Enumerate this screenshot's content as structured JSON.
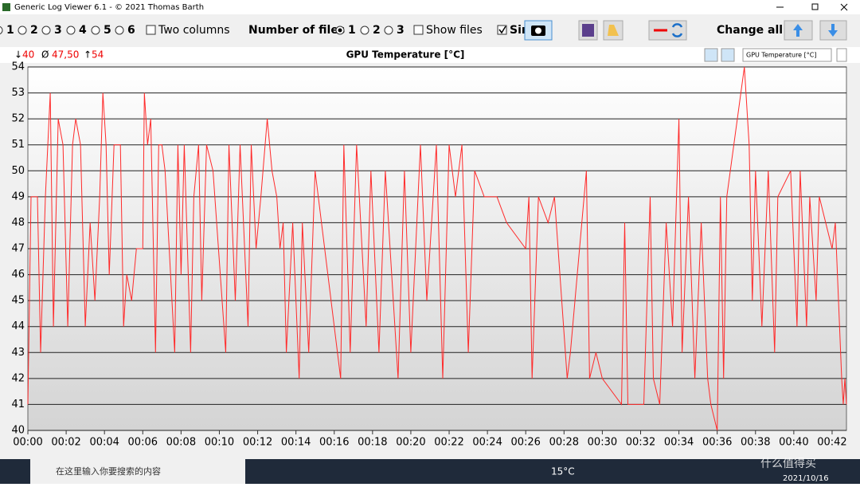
{
  "window": {
    "title": "Generic Log Viewer 6.1 - © 2021 Thomas Barth"
  },
  "toolbar": {
    "columns": [
      "1",
      "2",
      "3",
      "4",
      "5",
      "6"
    ],
    "two_columns": "Two columns",
    "number_of_files_label": "Number of files",
    "files": [
      "1",
      "2",
      "3"
    ],
    "show_files": "Show files",
    "sin": "Sin",
    "change_all": "Change all"
  },
  "chart_data": {
    "type": "line",
    "title": "GPU Temperature [°C]",
    "selector": "GPU Temperature [°C]",
    "stats": {
      "min": "40",
      "avg": "47,50",
      "max": "54"
    },
    "color": "#ff2a2a",
    "x": [
      0,
      10,
      30,
      40,
      55,
      70,
      80,
      95,
      110,
      125,
      140,
      150,
      165,
      180,
      195,
      210,
      225,
      235,
      245,
      255,
      270,
      290,
      300,
      310,
      325,
      340,
      360,
      365,
      375,
      385,
      400,
      410,
      420,
      430,
      460,
      470,
      480,
      490,
      510,
      520,
      535,
      545,
      560,
      580,
      620,
      630,
      650,
      665,
      690,
      700,
      715,
      730,
      750,
      765,
      780,
      790,
      800,
      810,
      830,
      850,
      860,
      880,
      900,
      980,
      990,
      1010,
      1030,
      1060,
      1075,
      1100,
      1120,
      1160,
      1180,
      1200,
      1230,
      1250,
      1280,
      1300,
      1320,
      1340,
      1360,
      1380,
      1400,
      1430,
      1470,
      1500,
      1560,
      1570,
      1580,
      1600,
      1630,
      1650,
      1690,
      1700,
      1750,
      1760,
      1780,
      1800,
      1860,
      1870,
      1880,
      1910,
      1930,
      1950,
      1960,
      1980,
      2000,
      2020,
      2040,
      2050,
      2070,
      2090,
      2110,
      2130,
      2140,
      2160,
      2170,
      2180,
      2190,
      2245,
      2260,
      2270,
      2280,
      2300,
      2320,
      2340,
      2350,
      2390,
      2410,
      2420,
      2440,
      2450,
      2470,
      2480,
      2500,
      2520,
      2530,
      2550,
      2555,
      2560,
      2565
    ],
    "values": [
      41,
      49,
      49,
      43,
      49,
      53,
      44,
      52,
      51,
      44,
      51,
      52,
      51,
      44,
      48,
      45,
      49,
      53,
      51,
      46,
      51,
      51,
      44,
      46,
      45,
      47,
      47,
      53,
      51,
      52,
      43,
      51,
      51,
      50,
      43,
      51,
      46,
      51,
      43,
      49,
      51,
      45,
      51,
      50,
      43,
      51,
      45,
      51,
      44,
      51,
      47,
      49,
      52,
      50,
      49,
      47,
      48,
      43,
      48,
      42,
      48,
      43,
      50,
      42,
      51,
      43,
      51,
      44,
      50,
      43,
      50,
      42,
      50,
      43,
      51,
      45,
      51,
      42,
      51,
      49,
      51,
      43,
      50,
      49,
      49,
      48,
      47,
      49,
      42,
      49,
      48,
      49,
      42,
      43,
      50,
      42,
      43,
      42,
      41,
      48,
      41,
      41,
      41,
      49,
      42,
      41,
      48,
      44,
      52,
      43,
      49,
      42,
      48,
      42,
      41,
      40,
      49,
      42,
      49,
      54,
      51,
      45,
      50,
      44,
      50,
      43,
      49,
      50,
      44,
      50,
      44,
      49,
      45,
      49,
      48,
      47,
      48,
      42,
      41,
      42,
      41
    ],
    "xlim": [
      0,
      2565
    ],
    "ylim": [
      40,
      54
    ],
    "yticks": [
      40,
      41,
      42,
      43,
      44,
      45,
      46,
      47,
      48,
      49,
      50,
      51,
      52,
      53,
      54
    ],
    "xticks": [
      {
        "value": 0,
        "label": "00:00"
      },
      {
        "value": 120,
        "label": "00:02"
      },
      {
        "value": 240,
        "label": "00:04"
      },
      {
        "value": 360,
        "label": "00:06"
      },
      {
        "value": 480,
        "label": "00:08"
      },
      {
        "value": 600,
        "label": "00:10"
      },
      {
        "value": 720,
        "label": "00:12"
      },
      {
        "value": 840,
        "label": "00:14"
      },
      {
        "value": 960,
        "label": "00:16"
      },
      {
        "value": 1080,
        "label": "00:18"
      },
      {
        "value": 1200,
        "label": "00:20"
      },
      {
        "value": 1320,
        "label": "00:22"
      },
      {
        "value": 1440,
        "label": "00:24"
      },
      {
        "value": 1560,
        "label": "00:26"
      },
      {
        "value": 1680,
        "label": "00:28"
      },
      {
        "value": 1800,
        "label": "00:30"
      },
      {
        "value": 1920,
        "label": "00:32"
      },
      {
        "value": 2040,
        "label": "00:34"
      },
      {
        "value": 2160,
        "label": "00:36"
      },
      {
        "value": 2280,
        "label": "00:38"
      },
      {
        "value": 2400,
        "label": "00:40"
      },
      {
        "value": 2520,
        "label": "00:42"
      }
    ],
    "grid": true
  },
  "taskbar": {
    "search": "在这里输入你要搜索的内容",
    "weather": "15°C",
    "date": "2021/10/16",
    "watermark": "什么值得买"
  }
}
